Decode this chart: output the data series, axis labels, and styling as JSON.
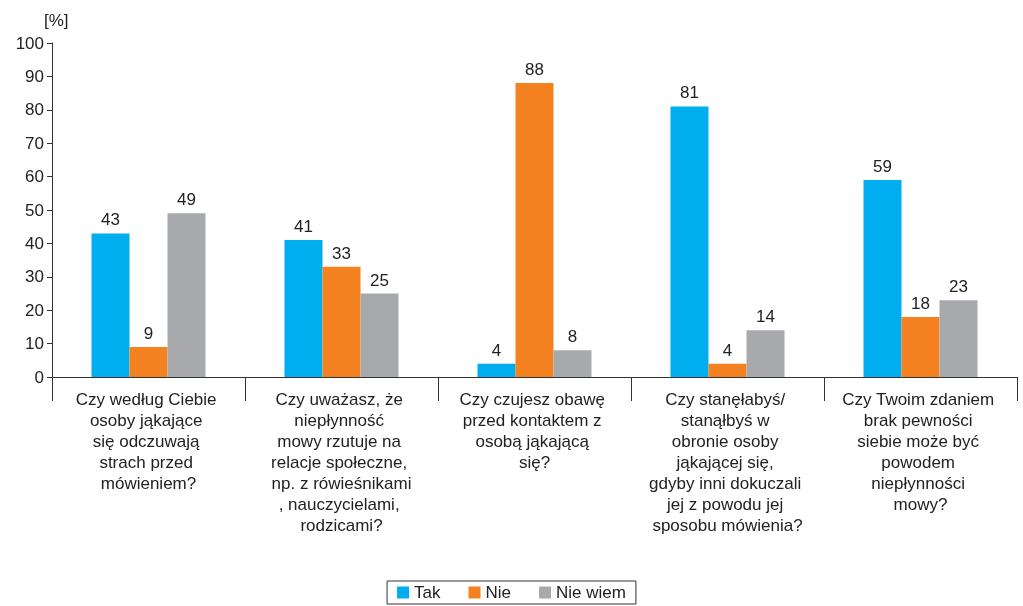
{
  "chart_data": {
    "type": "bar",
    "ylabel": "[%]",
    "categories": [
      "Czy według Ciebie osoby jąkające się odczuwają strach przed mówieniem?",
      "Czy uważasz, że niepłynność mowy rzutuje na relacje społeczne, np. z rówieśnikami, nauczycielami, rodzicami?",
      "Czy czujesz obawę przed kontaktem z osobą jąkającą się?",
      "Czy stanęłabyś/ stanąłbyś w obronie osoby jąkającej się, gdyby inni dokuczali jej z powodu jej sposobu mówienia?",
      "Czy Twoim zdaniem brak pewności siebie może być powodem niepłynności mowy?"
    ],
    "series": [
      {
        "name": "Tak",
        "color": "#00aeef",
        "values": [
          43,
          41,
          4,
          81,
          59
        ]
      },
      {
        "name": "Nie",
        "color": "#f58220",
        "values": [
          9,
          33,
          88,
          4,
          18
        ]
      },
      {
        "name": "Nie wiem",
        "color": "#a7a9ac",
        "values": [
          49,
          25,
          8,
          14,
          23
        ]
      }
    ],
    "ylim": [
      0,
      100
    ],
    "yticks": [
      0,
      10,
      20,
      30,
      40,
      50,
      60,
      70,
      80,
      90,
      100
    ],
    "grid": false,
    "legend": "bottom",
    "data_labels": true
  }
}
